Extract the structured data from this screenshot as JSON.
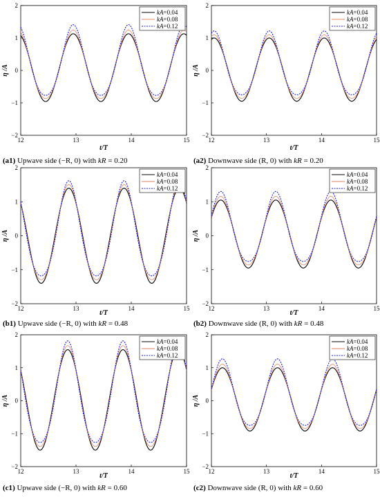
{
  "chart_data": [
    {
      "id": "a1",
      "type": "line",
      "caption": {
        "label": "a1",
        "text": " Upwave side (−R, 0) with ",
        "var": "kR",
        "tail": " = 0.20"
      },
      "xlabel": "t/T",
      "ylabel": "η /A",
      "xlim": [
        12,
        15
      ],
      "ylim": [
        -2,
        2
      ],
      "xticks": [
        "12",
        "13",
        "14",
        "15"
      ],
      "yticks": [
        "−2",
        "−1",
        "0",
        "1",
        "2"
      ],
      "legend_position": "top-right",
      "period": 1.0,
      "series": [
        {
          "name": "kA=0.04",
          "peak": 1.13,
          "trough": -0.96,
          "crest_time": 12.95
        },
        {
          "name": "kA=0.08",
          "peak": 1.18,
          "trough": -0.93,
          "crest_time": 12.95
        },
        {
          "name": "kA=0.12",
          "peak": 1.28,
          "trough": -0.9,
          "crest_time": 12.95
        }
      ]
    },
    {
      "id": "a2",
      "type": "line",
      "caption": {
        "label": "a2",
        "text": " Downwave side (R, 0) with ",
        "var": "kR",
        "tail": " = 0.20"
      },
      "xlabel": "t/T",
      "ylabel": "η /A",
      "xlim": [
        12,
        15
      ],
      "ylim": [
        -2,
        2
      ],
      "xticks": [
        "12",
        "13",
        "14",
        "15"
      ],
      "yticks": [
        "−2",
        "−1",
        "0",
        "1",
        "2"
      ],
      "legend_position": "top-right",
      "period": 1.0,
      "series": [
        {
          "name": "kA=0.04",
          "peak": 1.0,
          "trough": -0.95,
          "crest_time": 12.05
        },
        {
          "name": "kA=0.08",
          "peak": 1.04,
          "trough": -0.92,
          "crest_time": 12.05
        },
        {
          "name": "kA=0.12",
          "peak": 1.1,
          "trough": -0.87,
          "crest_time": 12.05
        }
      ]
    },
    {
      "id": "b1",
      "type": "line",
      "caption": {
        "label": "b1",
        "text": " Upwave side (−R, 0) with ",
        "var": "kR",
        "tail": " = 0.48"
      },
      "xlabel": "t/T",
      "ylabel": "η /A",
      "xlim": [
        12,
        15
      ],
      "ylim": [
        -2,
        2
      ],
      "xticks": [
        "12",
        "13",
        "14",
        "15"
      ],
      "yticks": [
        "−2",
        "−1",
        "0",
        "1",
        "2"
      ],
      "legend_position": "top-right",
      "period": 1.0,
      "series": [
        {
          "name": "kA=0.04",
          "peak": 1.4,
          "trough": -1.4,
          "crest_time": 12.87
        },
        {
          "name": "kA=0.08",
          "peak": 1.42,
          "trough": -1.38,
          "crest_time": 12.87
        },
        {
          "name": "kA=0.12",
          "peak": 1.45,
          "trough": -1.35,
          "crest_time": 12.87
        }
      ]
    },
    {
      "id": "b2",
      "type": "line",
      "caption": {
        "label": "b2",
        "text": " Downwave side (R, 0) with ",
        "var": "kR",
        "tail": " = 0.48"
      },
      "xlabel": "t/T",
      "ylabel": "η /A",
      "xlim": [
        12,
        15
      ],
      "ylim": [
        -2,
        2
      ],
      "xticks": [
        "12",
        "13",
        "14",
        "15"
      ],
      "yticks": [
        "−2",
        "−1",
        "0",
        "1",
        "2"
      ],
      "legend_position": "top-right",
      "period": 1.0,
      "series": [
        {
          "name": "kA=0.04",
          "peak": 1.05,
          "trough": -0.95,
          "crest_time": 12.17
        },
        {
          "name": "kA=0.08",
          "peak": 1.1,
          "trough": -0.92,
          "crest_time": 12.17
        },
        {
          "name": "kA=0.12",
          "peak": 1.18,
          "trough": -0.88,
          "crest_time": 12.17
        }
      ]
    },
    {
      "id": "c1",
      "type": "line",
      "caption": {
        "label": "c1",
        "text": " Upwave side (−R, 0) with ",
        "var": "kR",
        "tail": " = 0.60"
      },
      "xlabel": "t/T",
      "ylabel": "η /A",
      "xlim": [
        12,
        15
      ],
      "ylim": [
        -2,
        2
      ],
      "xticks": [
        "12",
        "13",
        "14",
        "15"
      ],
      "yticks": [
        "−2",
        "−1",
        "0",
        "1",
        "2"
      ],
      "legend_position": "top-right",
      "period": 1.0,
      "series": [
        {
          "name": "kA=0.04",
          "peak": 1.55,
          "trough": -1.5,
          "crest_time": 12.85
        },
        {
          "name": "kA=0.08",
          "peak": 1.58,
          "trough": -1.48,
          "crest_time": 12.85
        },
        {
          "name": "kA=0.12",
          "peak": 1.63,
          "trough": -1.45,
          "crest_time": 12.85
        }
      ]
    },
    {
      "id": "c2",
      "type": "line",
      "caption": {
        "label": "c2",
        "text": " Downwave side (R, 0) with ",
        "var": "kR",
        "tail": " = 0.60"
      },
      "xlabel": "t/T",
      "ylabel": "η /A",
      "xlim": [
        12,
        15
      ],
      "ylim": [
        -2,
        2
      ],
      "xticks": [
        "12",
        "13",
        "14",
        "15"
      ],
      "yticks": [
        "−2",
        "−1",
        "0",
        "1",
        "2"
      ],
      "legend_position": "top-right",
      "period": 1.0,
      "series": [
        {
          "name": "kA=0.04",
          "peak": 1.0,
          "trough": -0.92,
          "crest_time": 12.2
        },
        {
          "name": "kA=0.08",
          "peak": 1.05,
          "trough": -0.9,
          "crest_time": 12.2
        },
        {
          "name": "kA=0.12",
          "peak": 1.15,
          "trough": -0.87,
          "crest_time": 12.2
        }
      ]
    }
  ],
  "legend": [
    {
      "var": "kA",
      "value": "=0.04",
      "color": "#000000",
      "style": "solid"
    },
    {
      "var": "kA",
      "value": "=0.08",
      "color": "#e8866a",
      "style": "solid"
    },
    {
      "var": "kA",
      "value": "=0.12",
      "color": "#1f1fd6",
      "style": "dotted"
    }
  ]
}
